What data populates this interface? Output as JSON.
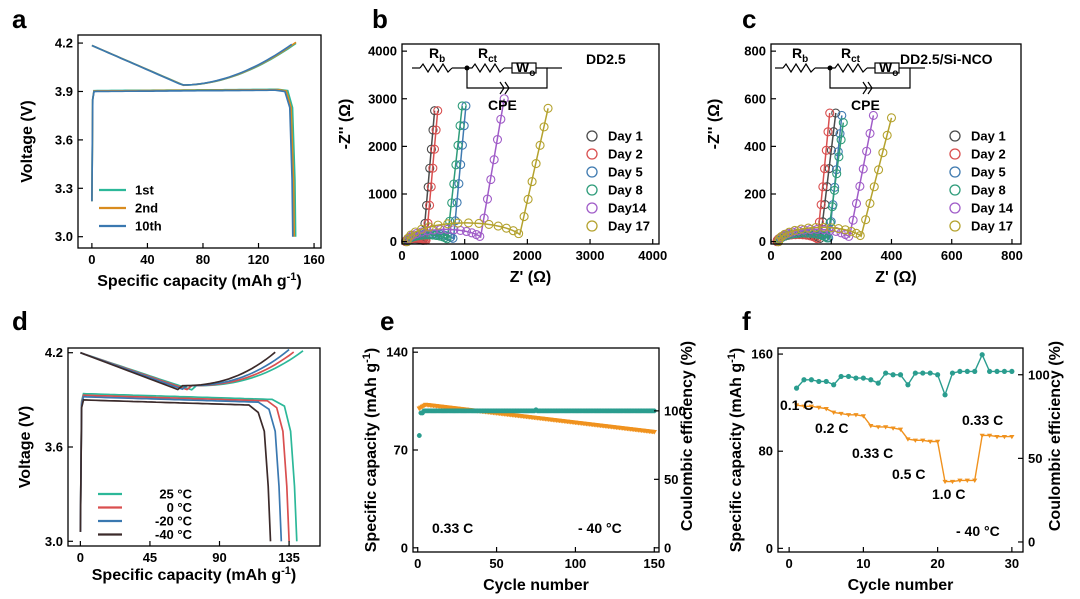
{
  "chart_data": [
    {
      "panel": "a",
      "type": "line",
      "xlabel": "Specific capacity (mAh g",
      "xlabel_sup": "-1",
      "xlabel_end": ")",
      "ylabel": "Voltage (V)",
      "xlim": [
        -10,
        165
      ],
      "ylim": [
        2.93,
        4.25
      ],
      "xticks": [
        "0",
        "40",
        "80",
        "120",
        "160"
      ],
      "yticks": [
        "3.0",
        "3.3",
        "3.6",
        "3.9",
        "4.2"
      ],
      "legend": "bottom-left",
      "series": [
        {
          "name": "1st",
          "color": "#2cb899",
          "charge_end": 147,
          "discharge_end": 144,
          "plateau": 3.905
        },
        {
          "name": "2nd",
          "color": "#d98c1f",
          "charge_end": 146,
          "discharge_end": 143,
          "plateau": 3.903
        },
        {
          "name": "10th",
          "color": "#3a78b0",
          "charge_end": 145,
          "discharge_end": 142,
          "plateau": 3.9
        }
      ]
    },
    {
      "panel": "b",
      "type": "scatter",
      "title": "DD2.5",
      "xlabel": "Z' (Ω)",
      "ylabel": "-Z'' (Ω)",
      "xlim": [
        0,
        4100
      ],
      "ylim": [
        -50,
        4150
      ],
      "xticks": [
        "0",
        "1000",
        "2000",
        "3000",
        "4000"
      ],
      "yticks": [
        "0",
        "1000",
        "2000",
        "3000",
        "4000"
      ],
      "circuit": {
        "rb": "R",
        "rb_sub": "b",
        "rct": "R",
        "rct_sub": "ct",
        "wo": "W",
        "wo_sub": "o",
        "cpe": "CPE"
      },
      "legend": "right",
      "series": [
        {
          "name": "Day 1",
          "color": "#4a4a4a",
          "r0": 60,
          "r1": 350,
          "tail_x": 520,
          "ymax": 2750
        },
        {
          "name": "Day 2",
          "color": "#d94f4f",
          "r0": 60,
          "r1": 400,
          "tail_x": 570,
          "ymax": 2750
        },
        {
          "name": "Day 5",
          "color": "#3f7ab0",
          "r0": 80,
          "r1": 850,
          "tail_x": 1020,
          "ymax": 2850
        },
        {
          "name": "Day 8",
          "color": "#2e9c7a",
          "r0": 80,
          "r1": 750,
          "tail_x": 960,
          "ymax": 2850
        },
        {
          "name": "Day14",
          "color": "#a05cc8",
          "r0": 80,
          "r1": 1300,
          "tail_x": 1630,
          "ymax": 3000
        },
        {
          "name": "Day 17",
          "color": "#b4a22e",
          "r0": 80,
          "r1": 1950,
          "tail_x": 2330,
          "ymax": 2800
        }
      ]
    },
    {
      "panel": "c",
      "type": "scatter",
      "title": "DD2.5/Si-NCO",
      "xlabel": "Z' (Ω)",
      "ylabel": "-Z'' (Ω)",
      "xlim": [
        0,
        830
      ],
      "ylim": [
        -10,
        830
      ],
      "xticks": [
        "0",
        "200",
        "400",
        "600",
        "800"
      ],
      "yticks": [
        "0",
        "200",
        "400",
        "600",
        "800"
      ],
      "circuit": {
        "rb": "R",
        "rb_sub": "b",
        "rct": "R",
        "rct_sub": "ct",
        "wo": "W",
        "wo_sub": "o",
        "cpe": "CPE"
      },
      "legend": "right",
      "series": [
        {
          "name": "Day 1",
          "color": "#4a4a4a",
          "r0": 20,
          "r1": 170,
          "tail_x": 215,
          "ymax": 540
        },
        {
          "name": "Day 2",
          "color": "#d94f4f",
          "r0": 20,
          "r1": 160,
          "tail_x": 195,
          "ymax": 540
        },
        {
          "name": "Day 5",
          "color": "#3f7ab0",
          "r0": 25,
          "r1": 200,
          "tail_x": 235,
          "ymax": 530
        },
        {
          "name": "Day 8",
          "color": "#2e9c7a",
          "r0": 25,
          "r1": 195,
          "tail_x": 240,
          "ymax": 500
        },
        {
          "name": "Day 14",
          "color": "#a05cc8",
          "r0": 25,
          "r1": 270,
          "tail_x": 340,
          "ymax": 530
        },
        {
          "name": "Day 17",
          "color": "#b4a22e",
          "r0": 25,
          "r1": 310,
          "tail_x": 400,
          "ymax": 520
        }
      ]
    },
    {
      "panel": "d",
      "type": "line",
      "xlabel": "Specific capacity (mAh g",
      "xlabel_sup": "-1",
      "xlabel_end": ")",
      "ylabel": "Voltage (V)",
      "xlim": [
        -8,
        155
      ],
      "ylim": [
        2.97,
        4.23
      ],
      "xticks": [
        "0",
        "45",
        "90",
        "135"
      ],
      "yticks": [
        "3.0",
        "3.6",
        "4.2"
      ],
      "legend": "bottom-left",
      "series": [
        {
          "name": "25 °C",
          "color": "#2cb899",
          "charge_end": 145,
          "discharge_end": 140,
          "plateau": 3.94
        },
        {
          "name": "0 °C",
          "color": "#d94f4f",
          "charge_end": 140,
          "discharge_end": 135,
          "plateau": 3.93
        },
        {
          "name": "-20 °C",
          "color": "#3a78b0",
          "charge_end": 135,
          "discharge_end": 130,
          "plateau": 3.92
        },
        {
          "name": "-40 °C",
          "color": "#3b2a2a",
          "charge_end": 128,
          "discharge_end": 123,
          "plateau": 3.9
        }
      ]
    },
    {
      "panel": "e",
      "type": "scatter",
      "xlabel": "Cycle number",
      "ylabel": "Specific capacity (mAh g",
      "ylabel_sup": "-1",
      "ylabel_end": ")",
      "y2label": "Coulombic efficiency (%)",
      "xlim": [
        -3,
        153
      ],
      "ylim": [
        -3,
        143
      ],
      "y2lim": [
        -3.06,
        145.9
      ],
      "xticks": [
        "0",
        "50",
        "100",
        "150"
      ],
      "yticks": [
        "0",
        "70",
        "140"
      ],
      "y2ticks": [
        "0",
        "50",
        "100"
      ],
      "annotations": [
        "0.33 C",
        "- 40 °C"
      ],
      "series": [
        {
          "name": "Specific capacity",
          "color": "#f0921e",
          "start": 103,
          "end": 83
        },
        {
          "name": "Coulombic efficiency",
          "color": "#2a9d8f",
          "first": 82,
          "value": 100
        }
      ]
    },
    {
      "panel": "f",
      "type": "scatter",
      "xlabel": "Cycle number",
      "ylabel": "Specific capacity (mAh g",
      "ylabel_sup": "-1",
      "ylabel_end": ")",
      "y2label": "Coulombic efficiency (%)",
      "xlim": [
        -1.5,
        31.5
      ],
      "ylim": [
        -3,
        165
      ],
      "y2lim": [
        -6,
        116
      ],
      "xticks": [
        "0",
        "10",
        "20",
        "30"
      ],
      "yticks": [
        "0",
        "80",
        "160"
      ],
      "y2ticks": [
        "0",
        "50",
        "100"
      ],
      "annotations": [
        "- 40 °C"
      ],
      "rate_labels": [
        "0.1 C",
        "0.2 C",
        "0.33 C",
        "0.5 C",
        "1.0 C",
        "0.33 C"
      ],
      "capacity": [
        118,
        117,
        117,
        116,
        115,
        112,
        111,
        110,
        110,
        109,
        101,
        100,
        100,
        99,
        98,
        90,
        89,
        89,
        88,
        88,
        55,
        55,
        56,
        56,
        56,
        93,
        93,
        92,
        92,
        92
      ],
      "efficiency": [
        92,
        97,
        97,
        96,
        96,
        94,
        99,
        99,
        98,
        98,
        97,
        95,
        101,
        100,
        100,
        94,
        101,
        101,
        101,
        100,
        88,
        101,
        102,
        102,
        102,
        112,
        102,
        102,
        102,
        102
      ]
    }
  ]
}
